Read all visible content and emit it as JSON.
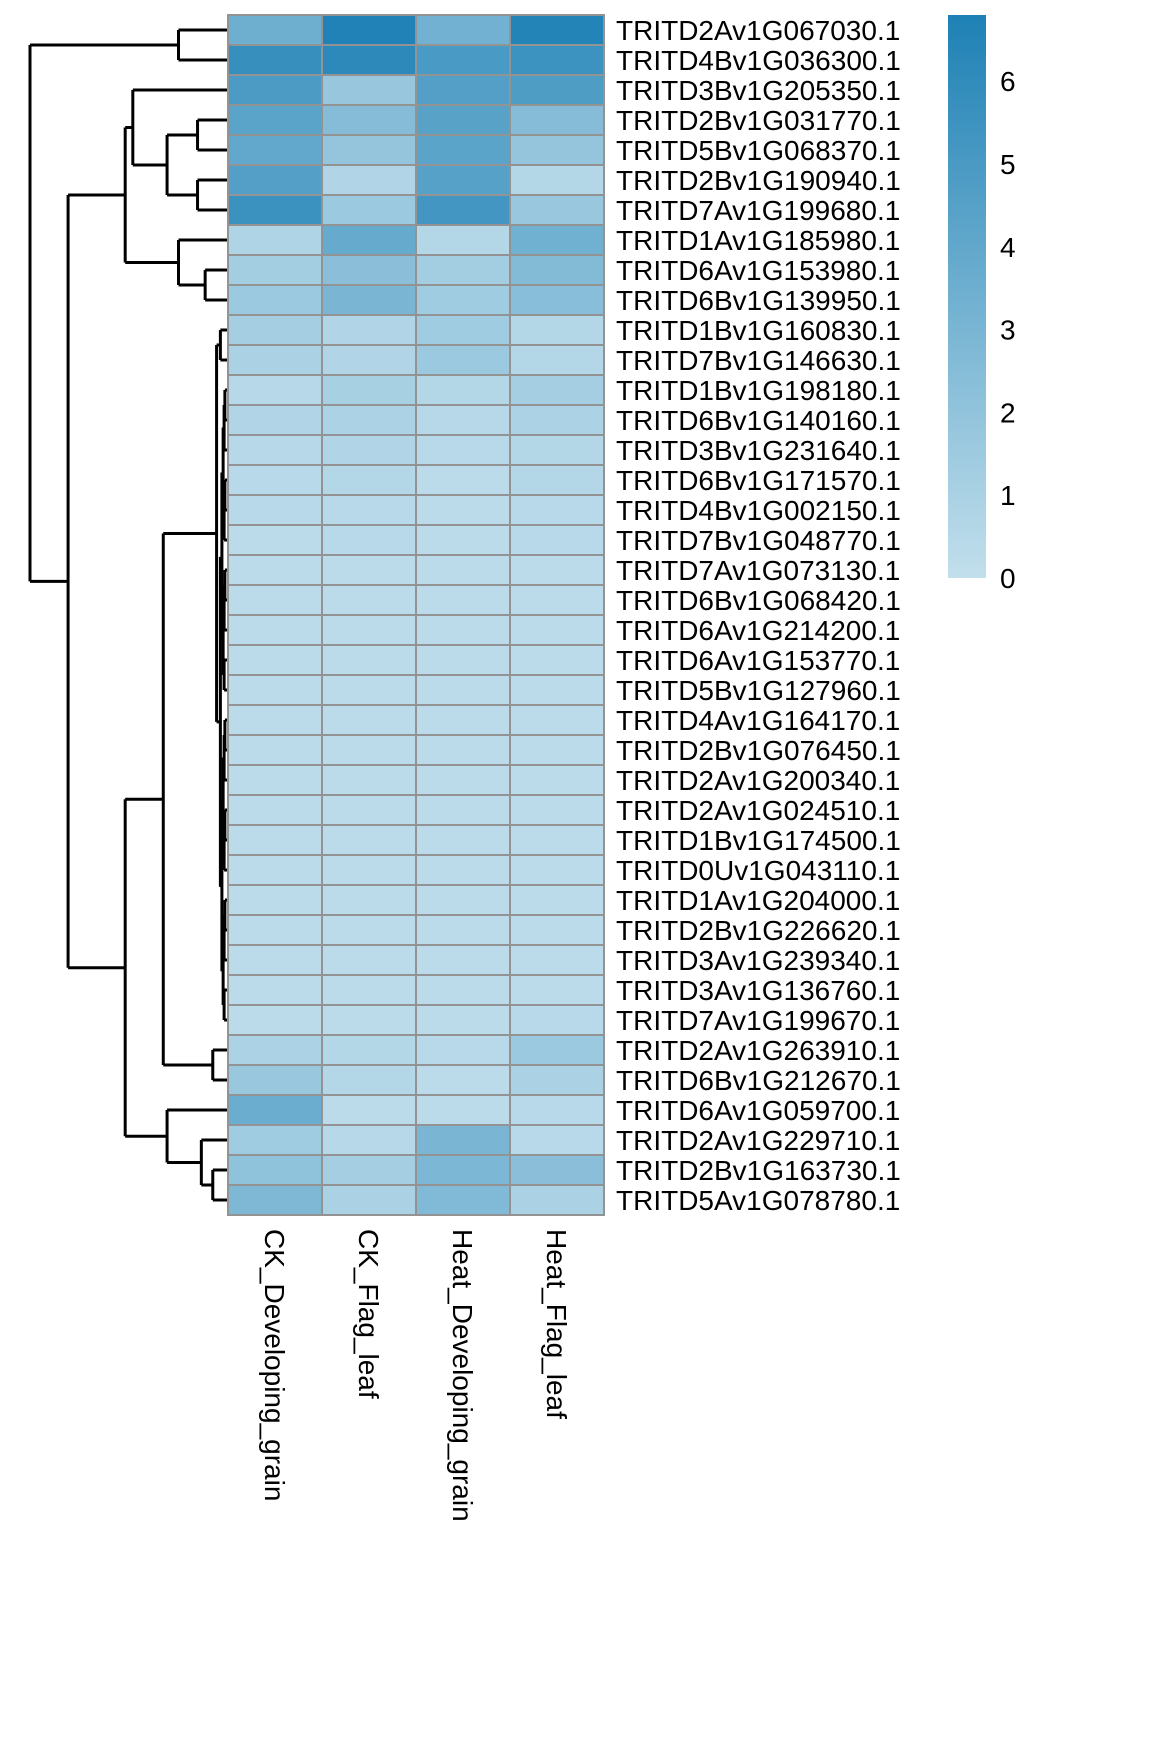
{
  "chart_data": {
    "type": "heatmap",
    "columns": [
      "CK_Developing_grain",
      "CK_Flag_leaf",
      "Heat_Developing_grain",
      "Heat_Flag_leaf"
    ],
    "rows": [
      "TRITD2Av1G067030.1",
      "TRITD4Bv1G036300.1",
      "TRITD3Bv1G205350.1",
      "TRITD2Bv1G031770.1",
      "TRITD5Bv1G068370.1",
      "TRITD2Bv1G190940.1",
      "TRITD7Av1G199680.1",
      "TRITD1Av1G185980.1",
      "TRITD6Av1G153980.1",
      "TRITD6Bv1G139950.1",
      "TRITD1Bv1G160830.1",
      "TRITD7Bv1G146630.1",
      "TRITD1Bv1G198180.1",
      "TRITD6Bv1G140160.1",
      "TRITD3Bv1G231640.1",
      "TRITD6Bv1G171570.1",
      "TRITD4Bv1G002150.1",
      "TRITD7Bv1G048770.1",
      "TRITD7Av1G073130.1",
      "TRITD6Bv1G068420.1",
      "TRITD6Av1G214200.1",
      "TRITD6Av1G153770.1",
      "TRITD5Bv1G127960.1",
      "TRITD4Av1G164170.1",
      "TRITD2Bv1G076450.1",
      "TRITD2Av1G200340.1",
      "TRITD2Av1G024510.1",
      "TRITD1Bv1G174500.1",
      "TRITD0Uv1G043110.1",
      "TRITD1Av1G204000.1",
      "TRITD2Bv1G226620.1",
      "TRITD3Av1G239340.1",
      "TRITD3Av1G136760.1",
      "TRITD7Av1G199670.1",
      "TRITD2Av1G263910.1",
      "TRITD6Bv1G212670.1",
      "TRITD6Av1G059700.1",
      "TRITD2Av1G229710.1",
      "TRITD2Bv1G163730.1",
      "TRITD5Av1G078780.1"
    ],
    "values": [
      [
        3.5,
        6.7,
        3.3,
        6.6
      ],
      [
        5.8,
        6.2,
        5.0,
        5.5
      ],
      [
        4.9,
        1.8,
        4.6,
        4.8
      ],
      [
        4.3,
        2.5,
        4.4,
        2.5
      ],
      [
        4.0,
        1.9,
        4.3,
        1.9
      ],
      [
        4.6,
        0.7,
        4.5,
        0.6
      ],
      [
        5.6,
        1.6,
        5.3,
        1.7
      ],
      [
        0.8,
        3.8,
        0.6,
        3.4
      ],
      [
        1.3,
        2.3,
        1.3,
        2.6
      ],
      [
        1.6,
        3.0,
        1.4,
        2.4
      ],
      [
        1.2,
        0.7,
        1.4,
        0.6
      ],
      [
        1.0,
        0.7,
        1.6,
        0.6
      ],
      [
        0.5,
        1.1,
        0.6,
        1.2
      ],
      [
        0.7,
        0.9,
        0.5,
        0.9
      ],
      [
        0.5,
        0.7,
        0.4,
        0.6
      ],
      [
        0.4,
        0.6,
        0.3,
        0.6
      ],
      [
        0.4,
        0.4,
        0.3,
        0.4
      ],
      [
        0.3,
        0.4,
        0.3,
        0.4
      ],
      [
        0.3,
        0.3,
        0.3,
        0.3
      ],
      [
        0.3,
        0.3,
        0.3,
        0.3
      ],
      [
        0.3,
        0.3,
        0.3,
        0.3
      ],
      [
        0.3,
        0.3,
        0.3,
        0.3
      ],
      [
        0.3,
        0.3,
        0.3,
        0.3
      ],
      [
        0.3,
        0.3,
        0.3,
        0.3
      ],
      [
        0.3,
        0.3,
        0.3,
        0.3
      ],
      [
        0.3,
        0.3,
        0.3,
        0.3
      ],
      [
        0.3,
        0.3,
        0.3,
        0.3
      ],
      [
        0.3,
        0.3,
        0.3,
        0.3
      ],
      [
        0.3,
        0.3,
        0.3,
        0.3
      ],
      [
        0.3,
        0.3,
        0.3,
        0.3
      ],
      [
        0.3,
        0.3,
        0.3,
        0.3
      ],
      [
        0.3,
        0.3,
        0.3,
        0.3
      ],
      [
        0.3,
        0.3,
        0.3,
        0.3
      ],
      [
        0.3,
        0.3,
        0.3,
        0.4
      ],
      [
        0.9,
        0.6,
        0.4,
        1.6
      ],
      [
        1.7,
        0.6,
        0.3,
        1.0
      ],
      [
        3.6,
        0.3,
        0.3,
        0.4
      ],
      [
        1.4,
        0.5,
        3.0,
        0.4
      ],
      [
        2.1,
        1.2,
        2.9,
        2.3
      ],
      [
        2.8,
        1.0,
        2.7,
        1.0
      ]
    ],
    "legend": {
      "position": "right",
      "min": 0,
      "max": 6.8,
      "ticks": [
        "0",
        "1",
        "2",
        "3",
        "4",
        "5",
        "6"
      ],
      "colors": [
        "#c2dfec",
        "#1e81b5"
      ]
    },
    "cell_border_color": "#939393",
    "row_dendrogram": true
  }
}
